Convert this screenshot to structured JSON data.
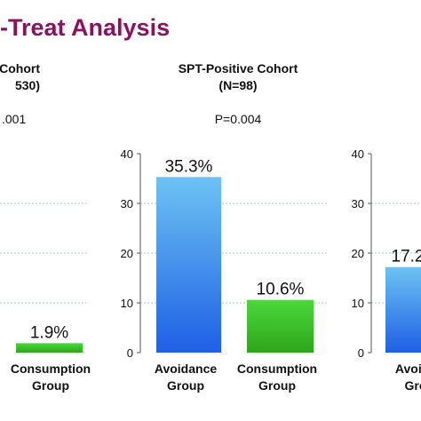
{
  "title": "-Treat Analysis",
  "colors": {
    "title": "#8b1163",
    "avoidance_top": "#6cc3f2",
    "avoidance_bottom": "#1f5fe6",
    "consumption_top": "#4cd83a",
    "consumption_bottom": "#2ea51c",
    "grid": "#b8c6d6"
  },
  "chart_data": [
    {
      "type": "bar",
      "header": [
        "tive Cohort",
        "530)"
      ],
      "p_value": ".001",
      "categories": [
        [
          "Consumption",
          "Group"
        ]
      ],
      "values": [
        1.9
      ],
      "value_labels": [
        "1.9%"
      ],
      "bar_colors": [
        "consumption"
      ],
      "ylim": [
        0,
        40
      ],
      "grid": true
    },
    {
      "type": "bar",
      "header": [
        "SPT-Positive Cohort",
        "(N=98)"
      ],
      "p_value": "P=0.004",
      "categories": [
        [
          "Avoidance",
          "Group"
        ],
        [
          "Consumption",
          "Group"
        ]
      ],
      "values": [
        35.3,
        10.6
      ],
      "value_labels": [
        "35.3%",
        "10.6%"
      ],
      "bar_colors": [
        "avoidance",
        "consumption"
      ],
      "yticks": [
        "0",
        "10",
        "20",
        "30",
        "40"
      ],
      "ylim": [
        0,
        40
      ],
      "grid": true
    },
    {
      "type": "bar",
      "categories": [
        [
          "Avoida",
          "Gro"
        ]
      ],
      "values": [
        17.2
      ],
      "value_labels": [
        "17.2"
      ],
      "bar_colors": [
        "avoidance"
      ],
      "yticks": [
        "0",
        "10",
        "20",
        "30",
        "40"
      ],
      "ylim": [
        0,
        40
      ],
      "grid": true
    }
  ]
}
